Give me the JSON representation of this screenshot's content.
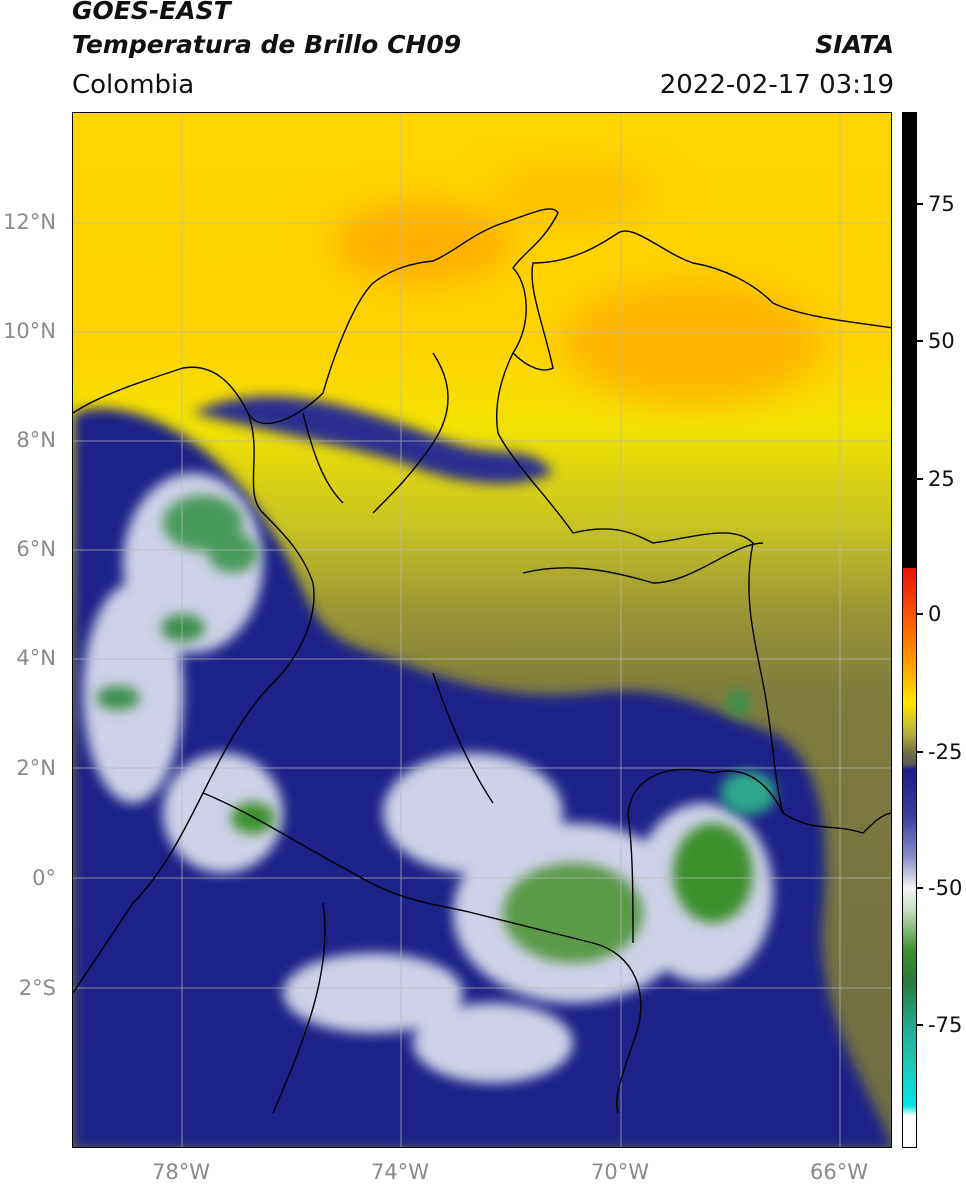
{
  "header": {
    "satellite": "GOES-EAST",
    "product": "Temperatura de Brillo CH09",
    "region": "Colombia",
    "source": "SIATA",
    "datetime": "2022-02-17 03:19"
  },
  "axes": {
    "lat_labels": [
      "12°N",
      "10°N",
      "8°N",
      "6°N",
      "4°N",
      "2°N",
      "0°",
      "2°S"
    ],
    "lon_labels": [
      "78°W",
      "74°W",
      "70°W",
      "66°W"
    ]
  },
  "colorbar": {
    "ticks": [
      "75",
      "50",
      "25",
      "0",
      "-25",
      "-50",
      "-75"
    ],
    "colors": {
      "black": "#000000",
      "red": "#e8120a",
      "orange": "#ff9a00",
      "yellow": "#ffe600",
      "olive": "#8c8a3a",
      "navy": "#1a1f8a",
      "white": "#f4f4f4",
      "green": "#3d8f2e",
      "teal": "#20c8b8",
      "cyan": "#00e5e5"
    }
  }
}
